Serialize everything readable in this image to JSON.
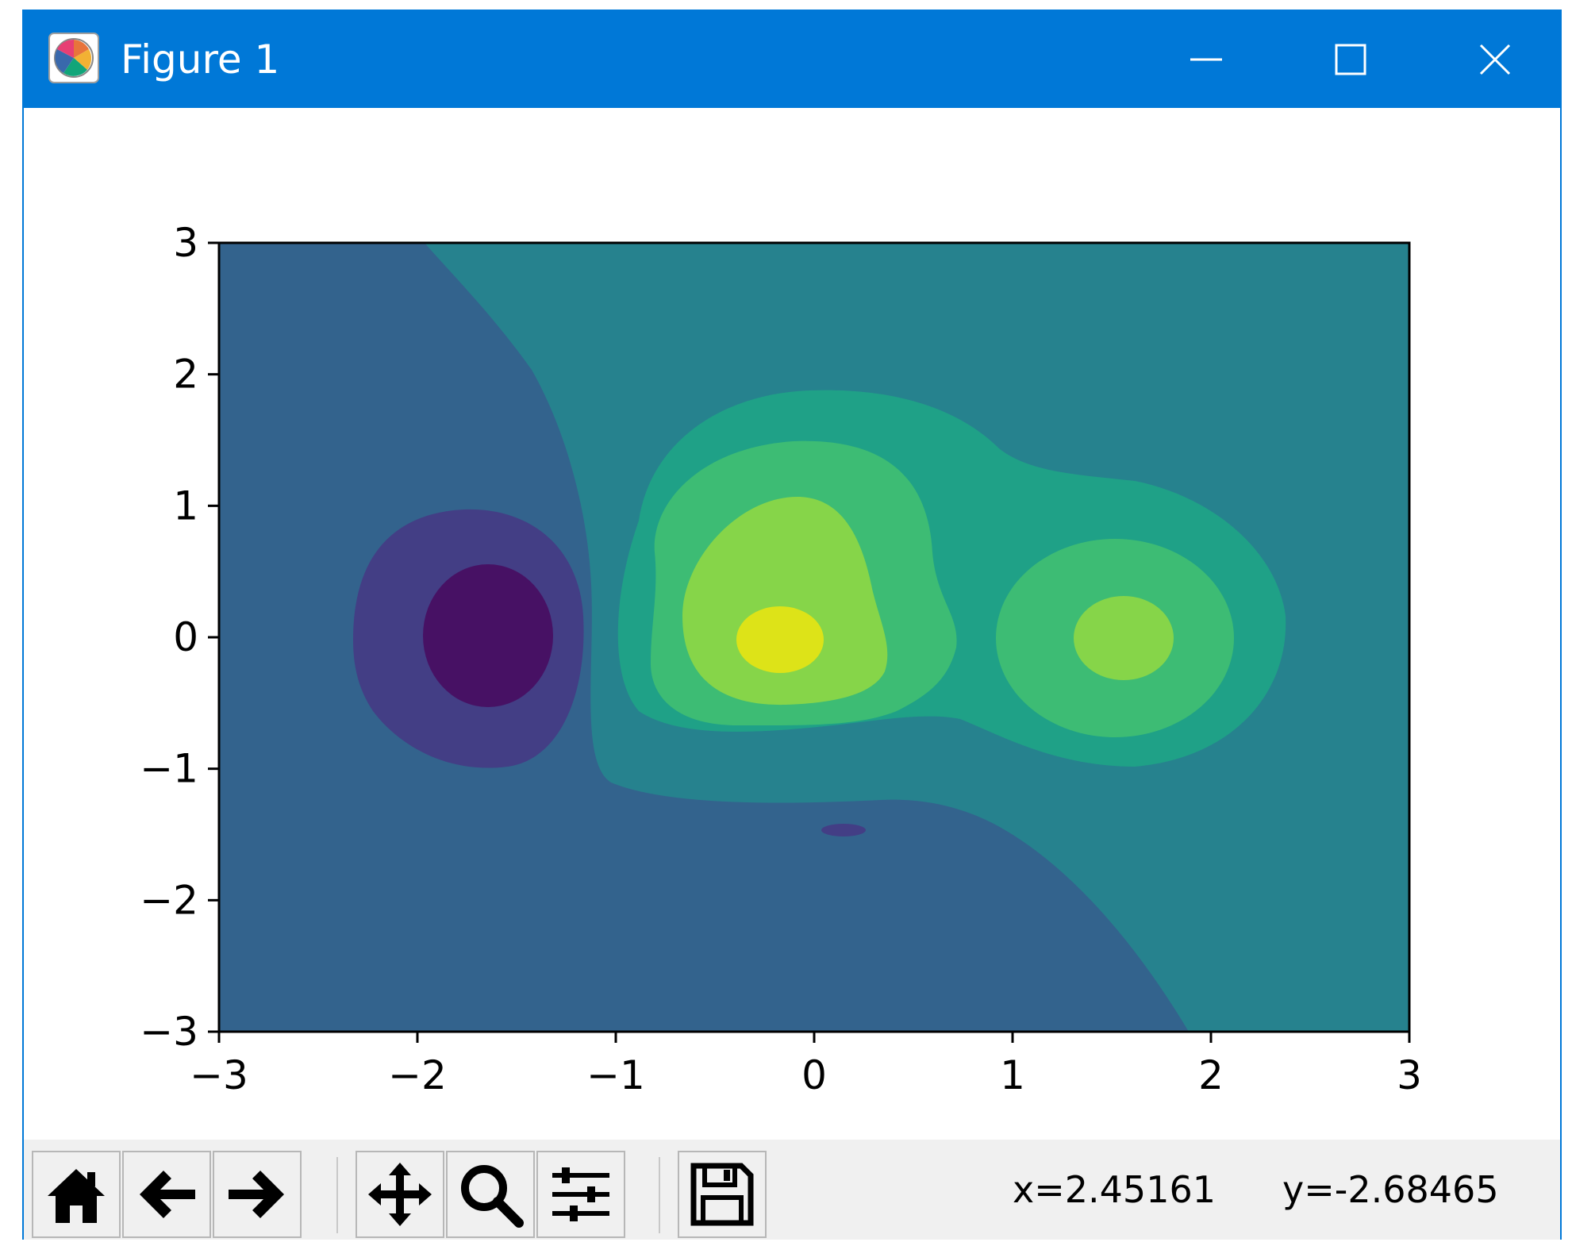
{
  "window": {
    "title": "Figure 1",
    "accent_color": "#0078d7",
    "controls": [
      {
        "name": "minimize-icon"
      },
      {
        "name": "maximize-icon"
      },
      {
        "name": "close-icon"
      }
    ]
  },
  "toolbar": {
    "buttons": [
      {
        "name": "home-icon"
      },
      {
        "name": "back-arrow-icon"
      },
      {
        "name": "forward-arrow-icon"
      },
      {
        "name": "pan-icon"
      },
      {
        "name": "zoom-icon"
      },
      {
        "name": "configure-subplots-icon"
      },
      {
        "name": "save-icon"
      }
    ],
    "coords": {
      "x": "x=2.45161",
      "y": "y=-2.68465"
    }
  },
  "chart_data": {
    "type": "heatmap",
    "title": "",
    "xlabel": "",
    "ylabel": "",
    "xlim": [
      -3,
      3
    ],
    "ylim": [
      -3,
      3
    ],
    "xticks": [
      "−3",
      "−2",
      "−1",
      "0",
      "1",
      "2",
      "3"
    ],
    "yticks": [
      "3",
      "2",
      "1",
      "0",
      "−1",
      "−2",
      "−3"
    ],
    "grid": false,
    "colormap": "viridis",
    "level_colors": [
      "#471164",
      "#433e85",
      "#33638d",
      "#26828e",
      "#1fa187",
      "#3dbc74",
      "#86d549",
      "#dde318"
    ],
    "contour_features": [
      {
        "label": "minimum",
        "x": -1.7,
        "y": 0.0
      },
      {
        "label": "maximum",
        "x": -0.2,
        "y": 0.0
      },
      {
        "label": "local maximum",
        "x": 1.55,
        "y": 0.0
      },
      {
        "label": "small dip",
        "x": 0.1,
        "y": -1.45
      }
    ]
  }
}
